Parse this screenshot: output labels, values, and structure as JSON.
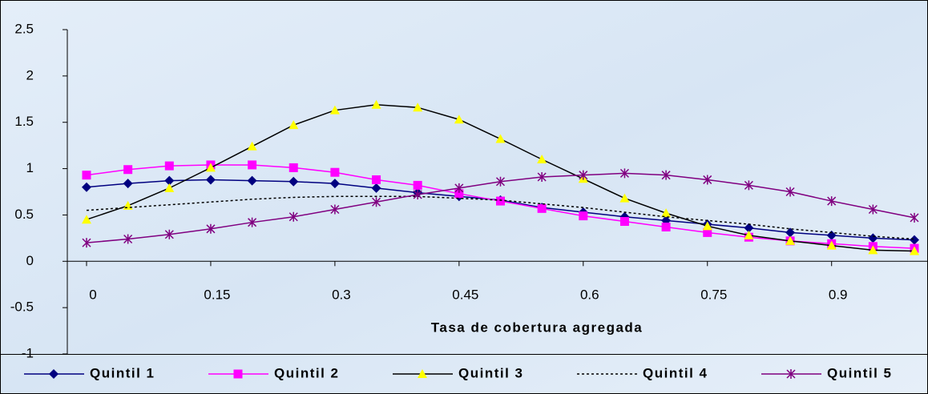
{
  "chart_data": {
    "type": "line",
    "x_label": "Tasa de cobertura agregada",
    "x": [
      0,
      0.05,
      0.1,
      0.15,
      0.2,
      0.25,
      0.3,
      0.35,
      0.4,
      0.45,
      0.5,
      0.55,
      0.6,
      0.65,
      0.7,
      0.75,
      0.8,
      0.85,
      0.9,
      0.95,
      1
    ],
    "xlim": [
      0,
      1
    ],
    "xticks": [
      0,
      0.15,
      0.3,
      0.45,
      0.6,
      0.75,
      0.9
    ],
    "ylim": [
      -1,
      2.5
    ],
    "yticks": [
      -1,
      -0.5,
      0,
      0.5,
      1,
      1.5,
      2,
      2.5
    ],
    "grid": false,
    "legend": "bottom",
    "series": [
      {
        "name": "Quintil 1",
        "color": "#000080",
        "marker": "diamond",
        "marker_color": "#000080",
        "values": [
          0.8,
          0.84,
          0.87,
          0.88,
          0.87,
          0.86,
          0.84,
          0.79,
          0.74,
          0.7,
          0.66,
          0.58,
          0.53,
          0.48,
          0.44,
          0.4,
          0.36,
          0.31,
          0.28,
          0.25,
          0.23
        ]
      },
      {
        "name": "Quintil 2",
        "color": "#ff00ff",
        "marker": "square",
        "marker_color": "#ff00ff",
        "values": [
          0.93,
          0.99,
          1.03,
          1.04,
          1.04,
          1.01,
          0.96,
          0.88,
          0.82,
          0.73,
          0.65,
          0.57,
          0.49,
          0.43,
          0.37,
          0.31,
          0.26,
          0.22,
          0.19,
          0.16,
          0.14
        ]
      },
      {
        "name": "Quintil 3",
        "color": "#000000",
        "marker": "triangle",
        "marker_color": "#ffff00",
        "values": [
          0.45,
          0.6,
          0.79,
          1.01,
          1.24,
          1.47,
          1.63,
          1.69,
          1.66,
          1.53,
          1.32,
          1.1,
          0.89,
          0.68,
          0.52,
          0.38,
          0.28,
          0.22,
          0.17,
          0.12,
          0.11
        ]
      },
      {
        "name": "Quintil 4",
        "color": "#000000",
        "line_style": "dotted",
        "values": [
          0.55,
          0.58,
          0.61,
          0.64,
          0.67,
          0.69,
          0.7,
          0.7,
          0.7,
          0.68,
          0.66,
          0.62,
          0.58,
          0.53,
          0.48,
          0.44,
          0.4,
          0.35,
          0.31,
          0.27,
          0.24
        ]
      },
      {
        "name": "Quintil 5",
        "color": "#800080",
        "marker": "star",
        "marker_color": "#800080",
        "values": [
          0.2,
          0.24,
          0.29,
          0.35,
          0.42,
          0.48,
          0.56,
          0.64,
          0.72,
          0.79,
          0.86,
          0.91,
          0.93,
          0.95,
          0.93,
          0.88,
          0.82,
          0.75,
          0.65,
          0.56,
          0.47
        ]
      }
    ]
  }
}
